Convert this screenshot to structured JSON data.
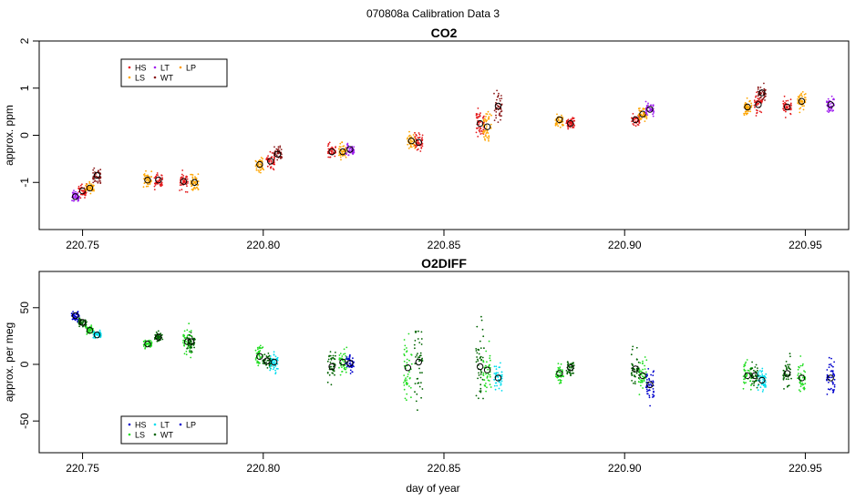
{
  "figure_title": "070808a   Calibration Data 3",
  "x_axis_title": "day of year",
  "colors": {
    "HS": "#e41a1c",
    "LS": "#ffa500",
    "LT": "#a020f0",
    "WT": "#8b1a1a",
    "LP": "#ff9a00",
    "HS_o2": "#0000cd",
    "LS_o2": "#22dd22",
    "LT_o2": "#00ddee",
    "WT_o2": "#006400",
    "LP_o2": "#0000cd"
  },
  "chart_data": [
    {
      "type": "scatter",
      "title": "CO2",
      "xlabel": "",
      "ylabel": "approx. ppm",
      "xlim": [
        220.738,
        220.962
      ],
      "ylim": [
        -2.0,
        2.0
      ],
      "xticks": [
        220.75,
        220.8,
        220.85,
        220.9,
        220.95
      ],
      "xtick_labels": [
        "220.75",
        "220.80",
        "220.85",
        "220.90",
        "220.95"
      ],
      "yticks": [
        -1,
        0,
        1,
        2
      ],
      "ytick_labels": [
        "-1",
        "0",
        "1",
        "2"
      ],
      "legend": {
        "position": "top-left",
        "entries": [
          {
            "label": "HS",
            "color_key": "HS"
          },
          {
            "label": "LS",
            "color_key": "LS"
          },
          {
            "label": "LT",
            "color_key": "LT"
          },
          {
            "label": "WT",
            "color_key": "WT"
          },
          {
            "label": "LP",
            "color_key": "LP"
          }
        ]
      },
      "groups": [
        {
          "x": 220.748,
          "mean": -1.3,
          "spread": 0.35,
          "color_key": "LT"
        },
        {
          "x": 220.75,
          "mean": -1.18,
          "spread": 0.4,
          "color_key": "HS"
        },
        {
          "x": 220.752,
          "mean": -1.12,
          "spread": 0.35,
          "color_key": "LS"
        },
        {
          "x": 220.754,
          "mean": -0.85,
          "spread": 0.45,
          "color_key": "WT"
        },
        {
          "x": 220.768,
          "mean": -0.95,
          "spread": 0.55,
          "color_key": "LS"
        },
        {
          "x": 220.771,
          "mean": -0.95,
          "spread": 0.55,
          "color_key": "HS"
        },
        {
          "x": 220.778,
          "mean": -0.98,
          "spread": 0.55,
          "color_key": "HS"
        },
        {
          "x": 220.781,
          "mean": -1.0,
          "spread": 0.6,
          "color_key": "LS"
        },
        {
          "x": 220.799,
          "mean": -0.62,
          "spread": 0.5,
          "color_key": "LS"
        },
        {
          "x": 220.802,
          "mean": -0.55,
          "spread": 0.55,
          "color_key": "HS"
        },
        {
          "x": 220.804,
          "mean": -0.4,
          "spread": 0.45,
          "color_key": "WT"
        },
        {
          "x": 220.819,
          "mean": -0.35,
          "spread": 0.5,
          "color_key": "HS"
        },
        {
          "x": 220.822,
          "mean": -0.35,
          "spread": 0.5,
          "color_key": "LS"
        },
        {
          "x": 220.824,
          "mean": -0.3,
          "spread": 0.4,
          "color_key": "LT"
        },
        {
          "x": 220.841,
          "mean": -0.12,
          "spread": 0.55,
          "color_key": "LS"
        },
        {
          "x": 220.843,
          "mean": -0.15,
          "spread": 0.5,
          "color_key": "HS"
        },
        {
          "x": 220.86,
          "mean": 0.25,
          "spread": 0.9,
          "color_key": "HS"
        },
        {
          "x": 220.862,
          "mean": 0.18,
          "spread": 0.95,
          "color_key": "LS"
        },
        {
          "x": 220.865,
          "mean": 0.62,
          "spread": 0.9,
          "color_key": "WT"
        },
        {
          "x": 220.882,
          "mean": 0.33,
          "spread": 0.5,
          "color_key": "LS"
        },
        {
          "x": 220.885,
          "mean": 0.25,
          "spread": 0.45,
          "color_key": "HS"
        },
        {
          "x": 220.903,
          "mean": 0.33,
          "spread": 0.4,
          "color_key": "HS"
        },
        {
          "x": 220.905,
          "mean": 0.45,
          "spread": 0.45,
          "color_key": "LS"
        },
        {
          "x": 220.907,
          "mean": 0.55,
          "spread": 0.45,
          "color_key": "LT"
        },
        {
          "x": 220.934,
          "mean": 0.6,
          "spread": 0.55,
          "color_key": "LS"
        },
        {
          "x": 220.937,
          "mean": 0.65,
          "spread": 0.55,
          "color_key": "HS"
        },
        {
          "x": 220.938,
          "mean": 0.9,
          "spread": 0.45,
          "color_key": "WT"
        },
        {
          "x": 220.945,
          "mean": 0.6,
          "spread": 0.55,
          "color_key": "HS"
        },
        {
          "x": 220.949,
          "mean": 0.72,
          "spread": 0.6,
          "color_key": "LS"
        },
        {
          "x": 220.957,
          "mean": 0.65,
          "spread": 0.45,
          "color_key": "LT"
        }
      ]
    },
    {
      "type": "scatter",
      "title": "O2DIFF",
      "xlabel": "day of year",
      "ylabel": "approx. per meg",
      "xlim": [
        220.738,
        220.962
      ],
      "ylim": [
        -78,
        82
      ],
      "xticks": [
        220.75,
        220.8,
        220.85,
        220.9,
        220.95
      ],
      "xtick_labels": [
        "220.75",
        "220.80",
        "220.85",
        "220.90",
        "220.95"
      ],
      "yticks": [
        -50,
        0,
        50
      ],
      "ytick_labels": [
        "-50",
        "0",
        "50"
      ],
      "legend": {
        "position": "bottom-left",
        "entries": [
          {
            "label": "HS",
            "color_key": "HS_o2"
          },
          {
            "label": "LS",
            "color_key": "LS_o2"
          },
          {
            "label": "LT",
            "color_key": "LT_o2"
          },
          {
            "label": "WT",
            "color_key": "WT_o2"
          },
          {
            "label": "LP",
            "color_key": "LP_o2"
          }
        ]
      },
      "groups": [
        {
          "x": 220.748,
          "mean": 43,
          "spread": 14,
          "color_key": "HS_o2"
        },
        {
          "x": 220.75,
          "mean": 37,
          "spread": 12,
          "color_key": "WT_o2"
        },
        {
          "x": 220.752,
          "mean": 30,
          "spread": 14,
          "color_key": "LS_o2"
        },
        {
          "x": 220.754,
          "mean": 26,
          "spread": 10,
          "color_key": "LT_o2"
        },
        {
          "x": 220.768,
          "mean": 18,
          "spread": 10,
          "color_key": "LS_o2"
        },
        {
          "x": 220.771,
          "mean": 24,
          "spread": 12,
          "color_key": "WT_o2"
        },
        {
          "x": 220.779,
          "mean": 20,
          "spread": 35,
          "color_key": "LS_o2"
        },
        {
          "x": 220.78,
          "mean": 20,
          "spread": 25,
          "color_key": "WT_o2"
        },
        {
          "x": 220.799,
          "mean": 7,
          "spread": 30,
          "color_key": "LS_o2"
        },
        {
          "x": 220.801,
          "mean": 3,
          "spread": 25,
          "color_key": "WT_o2"
        },
        {
          "x": 220.803,
          "mean": 2,
          "spread": 25,
          "color_key": "LT_o2"
        },
        {
          "x": 220.819,
          "mean": -2,
          "spread": 45,
          "color_key": "WT_o2"
        },
        {
          "x": 220.822,
          "mean": 2,
          "spread": 35,
          "color_key": "LS_o2"
        },
        {
          "x": 220.824,
          "mean": 1,
          "spread": 25,
          "color_key": "HS_o2"
        },
        {
          "x": 220.84,
          "mean": -3,
          "spread": 100,
          "color_key": "LS_o2"
        },
        {
          "x": 220.843,
          "mean": 2,
          "spread": 100,
          "color_key": "WT_o2"
        },
        {
          "x": 220.86,
          "mean": -2,
          "spread": 100,
          "color_key": "WT_o2"
        },
        {
          "x": 220.862,
          "mean": -5,
          "spread": 55,
          "color_key": "LS_o2"
        },
        {
          "x": 220.865,
          "mean": -12,
          "spread": 40,
          "color_key": "LT_o2"
        },
        {
          "x": 220.882,
          "mean": -8,
          "spread": 25,
          "color_key": "LS_o2"
        },
        {
          "x": 220.885,
          "mean": -3,
          "spread": 22,
          "color_key": "WT_o2"
        },
        {
          "x": 220.903,
          "mean": -4,
          "spread": 55,
          "color_key": "WT_o2"
        },
        {
          "x": 220.905,
          "mean": -10,
          "spread": 45,
          "color_key": "LS_o2"
        },
        {
          "x": 220.907,
          "mean": -18,
          "spread": 60,
          "color_key": "HS_o2"
        },
        {
          "x": 220.934,
          "mean": -10,
          "spread": 35,
          "color_key": "LS_o2"
        },
        {
          "x": 220.936,
          "mean": -10,
          "spread": 30,
          "color_key": "WT_o2"
        },
        {
          "x": 220.938,
          "mean": -14,
          "spread": 30,
          "color_key": "LT_o2"
        },
        {
          "x": 220.945,
          "mean": -8,
          "spread": 40,
          "color_key": "WT_o2"
        },
        {
          "x": 220.949,
          "mean": -12,
          "spread": 40,
          "color_key": "LS_o2"
        },
        {
          "x": 220.957,
          "mean": -12,
          "spread": 50,
          "color_key": "HS_o2"
        }
      ]
    }
  ]
}
